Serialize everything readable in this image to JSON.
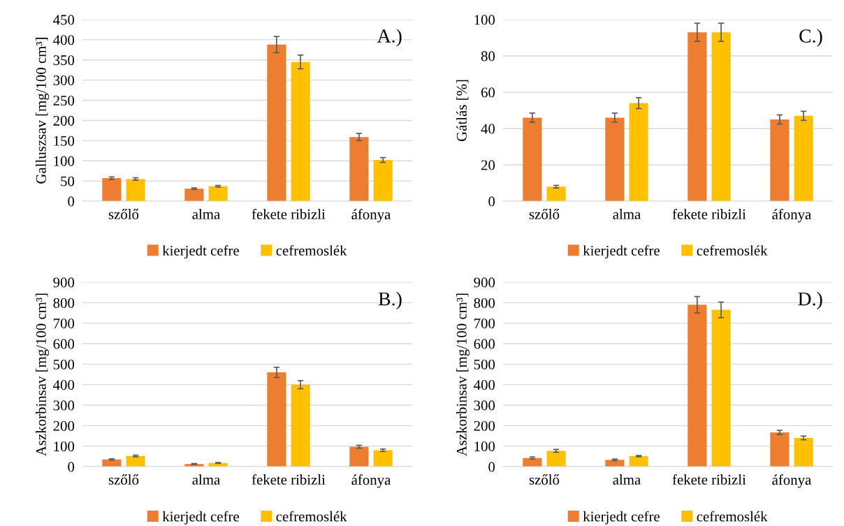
{
  "chart_data": [
    {
      "type": "bar",
      "ylabel": "Galluszsav [mg/100 cm³]",
      "annotations": [
        "A.)"
      ],
      "categories": [
        "szőlő",
        "alma",
        "fekete ribizli",
        "áfonya"
      ],
      "ylim": [
        0,
        450
      ],
      "yticks": [
        0,
        50,
        100,
        150,
        200,
        250,
        300,
        350,
        400,
        450
      ],
      "grid": "y",
      "legend": "bottom",
      "series": [
        {
          "name": "kierjedt cefre",
          "color": "#ed7d31",
          "values": [
            57,
            31,
            388,
            159
          ],
          "errors": [
            3,
            2,
            20,
            9
          ]
        },
        {
          "name": "cefremoslék",
          "color": "#ffc000",
          "values": [
            55,
            37,
            345,
            102
          ],
          "errors": [
            3,
            2,
            17,
            6
          ]
        }
      ]
    },
    {
      "type": "bar",
      "ylabel": "Gátlás [%]",
      "annotations": [
        "C.)"
      ],
      "categories": [
        "szőlő",
        "alma",
        "fekete ribizli",
        "áfonya"
      ],
      "ylim": [
        0,
        100
      ],
      "yticks": [
        0,
        20,
        40,
        60,
        80,
        100
      ],
      "grid": "y",
      "legend": "bottom",
      "series": [
        {
          "name": "kierjedt cefre",
          "color": "#ed7d31",
          "values": [
            46,
            46,
            93,
            45
          ],
          "errors": [
            2.5,
            2.5,
            5,
            2.5
          ]
        },
        {
          "name": "cefremoslék",
          "color": "#ffc000",
          "values": [
            8,
            54,
            93,
            47
          ],
          "errors": [
            0.7,
            3,
            5,
            2.5
          ]
        }
      ]
    },
    {
      "type": "bar",
      "ylabel": "Aszkorbinsav [mg/100 cm³]",
      "annotations": [
        "B.)"
      ],
      "categories": [
        "szőlő",
        "alma",
        "fekete ribizli",
        "áfonya"
      ],
      "ylim": [
        0,
        900
      ],
      "yticks": [
        0,
        100,
        200,
        300,
        400,
        500,
        600,
        700,
        800,
        900
      ],
      "grid": "y",
      "legend": "bottom",
      "series": [
        {
          "name": "kierjedt cefre",
          "color": "#ed7d31",
          "values": [
            35,
            13,
            460,
            97
          ],
          "errors": [
            3,
            2,
            25,
            7
          ]
        },
        {
          "name": "cefremoslék",
          "color": "#ffc000",
          "values": [
            52,
            18,
            400,
            80
          ],
          "errors": [
            4,
            2,
            20,
            6
          ]
        }
      ]
    },
    {
      "type": "bar",
      "ylabel": "Aszkorbinsav [mg/100 cm³]",
      "annotations": [
        "D.)"
      ],
      "categories": [
        "szőlő",
        "alma",
        "fekete ribizli",
        "áfonya"
      ],
      "ylim": [
        0,
        900
      ],
      "yticks": [
        0,
        100,
        200,
        300,
        400,
        500,
        600,
        700,
        800,
        900
      ],
      "grid": "y",
      "legend": "bottom",
      "series": [
        {
          "name": "kierjedt cefre",
          "color": "#ed7d31",
          "values": [
            42,
            33,
            790,
            167
          ],
          "errors": [
            5,
            4,
            40,
            10
          ]
        },
        {
          "name": "cefremoslék",
          "color": "#ffc000",
          "values": [
            77,
            51,
            765,
            140
          ],
          "errors": [
            7,
            3,
            38,
            9
          ]
        }
      ]
    }
  ]
}
